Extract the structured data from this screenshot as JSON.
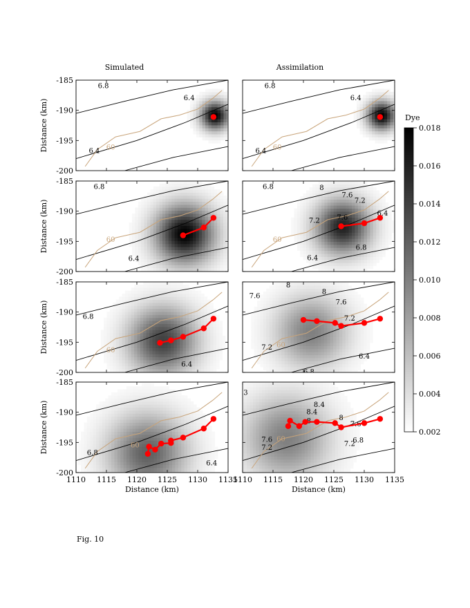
{
  "figure": {
    "caption": "Fig. 10",
    "column_titles": [
      "Simulated",
      "Assimilation"
    ],
    "colorbar_title": "Dye"
  },
  "chart_data": {
    "type": "heatmap",
    "layout": "4 rows x 2 columns of map panels",
    "xlabel": "Distance (km)",
    "ylabel": "Distance (km)",
    "xlim": [
      1110,
      1135
    ],
    "ylim": [
      -200,
      -185
    ],
    "xticks": [
      "1110",
      "1115",
      "1120",
      "1125",
      "1130",
      "1135"
    ],
    "yticks": [
      "-185",
      "-190",
      "-195",
      "-200"
    ],
    "colorbar": {
      "label": "Dye",
      "range": [
        0.002,
        0.018
      ],
      "ticks": [
        "0.002",
        "0.004",
        "0.006",
        "0.008",
        "0.010",
        "0.012",
        "0.014",
        "0.016",
        "0.018"
      ],
      "colormap": [
        "#ffffff",
        "#000000"
      ]
    },
    "colors": {
      "track": "#ff0000",
      "isobath": "#c8a47a",
      "contour": "#000000"
    },
    "panels": [
      {
        "row": 1,
        "column": "Simulated",
        "dye_peak": 0.018,
        "dye_center": [
          1132.6,
          -191.1
        ],
        "dye_radius_km": 2.2,
        "track": [
          [
            1132.6,
            -191.1
          ]
        ],
        "contour_labels": [
          {
            "text": "6.8",
            "x": 1114.5,
            "y": -185.9
          },
          {
            "text": "6.4",
            "x": 1128.6,
            "y": -187.9
          },
          {
            "text": "6.4",
            "x": 1113.0,
            "y": -196.7
          }
        ],
        "isobath_label": {
          "text": "60",
          "x": 1115.7,
          "y": -196.5
        }
      },
      {
        "row": 1,
        "column": "Assimilation",
        "dye_peak": 0.018,
        "dye_center": [
          1132.6,
          -191.1
        ],
        "dye_radius_km": 2.2,
        "track": [
          [
            1132.6,
            -191.1
          ]
        ],
        "contour_labels": [
          {
            "text": "6.8",
            "x": 1114.5,
            "y": -185.9
          },
          {
            "text": "6.4",
            "x": 1128.6,
            "y": -187.9
          },
          {
            "text": "6.4",
            "x": 1113.0,
            "y": -196.7
          }
        ],
        "isobath_label": {
          "text": "60",
          "x": 1115.7,
          "y": -196.5
        }
      },
      {
        "row": 2,
        "column": "Simulated",
        "dye_peak": 0.018,
        "dye_center": [
          1127.6,
          -194.0
        ],
        "dye_radius_km": 4.5,
        "track": [
          [
            1127.6,
            -194.0
          ],
          [
            1131.0,
            -192.7
          ],
          [
            1132.6,
            -191.1
          ]
        ],
        "contour_labels": [
          {
            "text": "6.8",
            "x": 1113.8,
            "y": -185.9
          },
          {
            "text": "6.4",
            "x": 1119.5,
            "y": -197.8
          }
        ],
        "isobath_label": {
          "text": "60",
          "x": 1115.7,
          "y": -195.1
        }
      },
      {
        "row": 2,
        "column": "Assimilation",
        "dye_peak": 0.016,
        "dye_center": [
          1126.2,
          -192.8
        ],
        "dye_radius_km": 4.2,
        "track": [
          [
            1126.2,
            -192.5
          ],
          [
            1130.0,
            -192.0
          ],
          [
            1132.6,
            -191.1
          ]
        ],
        "contour_labels": [
          {
            "text": "6.8",
            "x": 1114.2,
            "y": -185.9
          },
          {
            "text": "8",
            "x": 1123.0,
            "y": -186.1
          },
          {
            "text": "7.6",
            "x": 1127.2,
            "y": -187.3
          },
          {
            "text": "7.2",
            "x": 1129.3,
            "y": -188.2
          },
          {
            "text": "7.2",
            "x": 1121.8,
            "y": -191.5
          },
          {
            "text": "7.6",
            "x": 1126.4,
            "y": -191.0
          },
          {
            "text": "6.4",
            "x": 1133.0,
            "y": -190.3
          },
          {
            "text": "6.8",
            "x": 1129.5,
            "y": -196.0
          },
          {
            "text": "6.4",
            "x": 1121.5,
            "y": -197.7
          }
        ],
        "isobath_label": {
          "text": "60",
          "x": 1115.7,
          "y": -195.1
        }
      },
      {
        "row": 3,
        "column": "Simulated",
        "dye_peak": 0.014,
        "dye_center": [
          1124.0,
          -195.0
        ],
        "dye_radius_km": 5.2,
        "track": [
          [
            1123.8,
            -195.1
          ],
          [
            1125.6,
            -194.7
          ],
          [
            1127.6,
            -194.1
          ],
          [
            1131.0,
            -192.7
          ],
          [
            1132.6,
            -191.1
          ]
        ],
        "contour_labels": [
          {
            "text": "6.8",
            "x": 1112.0,
            "y": -190.7
          },
          {
            "text": "6.4",
            "x": 1128.2,
            "y": -198.6
          }
        ],
        "isobath_label": {
          "text": "60",
          "x": 1115.7,
          "y": -196.7
        }
      },
      {
        "row": 3,
        "column": "Assimilation",
        "dye_peak": 0.01,
        "dye_center": [
          1121.0,
          -193.5
        ],
        "dye_radius_km": 5.5,
        "track": [
          [
            1120.0,
            -191.3
          ],
          [
            1122.2,
            -191.5
          ],
          [
            1125.2,
            -191.8
          ],
          [
            1126.2,
            -192.3
          ],
          [
            1130.0,
            -191.8
          ],
          [
            1132.6,
            -191.1
          ]
        ],
        "contour_labels": [
          {
            "text": "8",
            "x": 1117.5,
            "y": -185.5
          },
          {
            "text": "8",
            "x": 1123.4,
            "y": -186.6
          },
          {
            "text": "7.6",
            "x": 1112.0,
            "y": -187.3
          },
          {
            "text": "7.6",
            "x": 1126.2,
            "y": -188.3
          },
          {
            "text": "7.2",
            "x": 1114.0,
            "y": -195.8
          },
          {
            "text": "7.2",
            "x": 1127.6,
            "y": -191.0
          },
          {
            "text": "6.4",
            "x": 1130.0,
            "y": -197.3
          },
          {
            "text": "6.8",
            "x": 1120.9,
            "y": -199.9
          }
        ],
        "isobath_label": {
          "text": "60",
          "x": 1116.3,
          "y": -195.8
        }
      },
      {
        "row": 4,
        "column": "Simulated",
        "dye_peak": 0.012,
        "dye_center": [
          1121.5,
          -197.0
        ],
        "dye_radius_km": 6.0,
        "track": [
          [
            1121.8,
            -196.9
          ],
          [
            1122.0,
            -195.7
          ],
          [
            1123.0,
            -196.2
          ],
          [
            1124.0,
            -195.2
          ],
          [
            1125.6,
            -195.1
          ],
          [
            1125.6,
            -194.7
          ],
          [
            1127.6,
            -194.2
          ],
          [
            1131.0,
            -192.7
          ],
          [
            1132.6,
            -191.1
          ]
        ],
        "contour_labels": [
          {
            "text": "6.8",
            "x": 1112.7,
            "y": -196.7
          },
          {
            "text": "6.4",
            "x": 1132.3,
            "y": -198.4
          }
        ],
        "isobath_label": {
          "text": "60",
          "x": 1119.7,
          "y": -195.8
        }
      },
      {
        "row": 4,
        "column": "Assimilation",
        "dye_peak": 0.01,
        "dye_center": [
          1117.0,
          -194.5
        ],
        "dye_radius_km": 6.5,
        "track": [
          [
            1117.5,
            -192.3
          ],
          [
            1117.8,
            -191.4
          ],
          [
            1119.3,
            -192.3
          ],
          [
            1120.3,
            -191.6
          ],
          [
            1122.2,
            -191.6
          ],
          [
            1125.2,
            -191.8
          ],
          [
            1126.2,
            -192.5
          ],
          [
            1130.0,
            -191.8
          ],
          [
            1132.6,
            -191.1
          ]
        ],
        "contour_labels": [
          {
            "text": "3",
            "x": 1110.5,
            "y": -186.7
          },
          {
            "text": "8.4",
            "x": 1122.6,
            "y": -188.7
          },
          {
            "text": "8.4",
            "x": 1121.4,
            "y": -189.9
          },
          {
            "text": "8",
            "x": 1120.9,
            "y": -191.4
          },
          {
            "text": "8",
            "x": 1126.2,
            "y": -190.9
          },
          {
            "text": "7.6",
            "x": 1128.6,
            "y": -191.9
          },
          {
            "text": "7.6",
            "x": 1114.0,
            "y": -194.5
          },
          {
            "text": "7.2",
            "x": 1114.0,
            "y": -195.8
          },
          {
            "text": "7.2",
            "x": 1127.6,
            "y": -195.2
          },
          {
            "text": "6.8",
            "x": 1129.0,
            "y": -194.6
          }
        ],
        "isobath_label": {
          "text": "60",
          "x": 1116.3,
          "y": -194.8
        }
      }
    ]
  }
}
